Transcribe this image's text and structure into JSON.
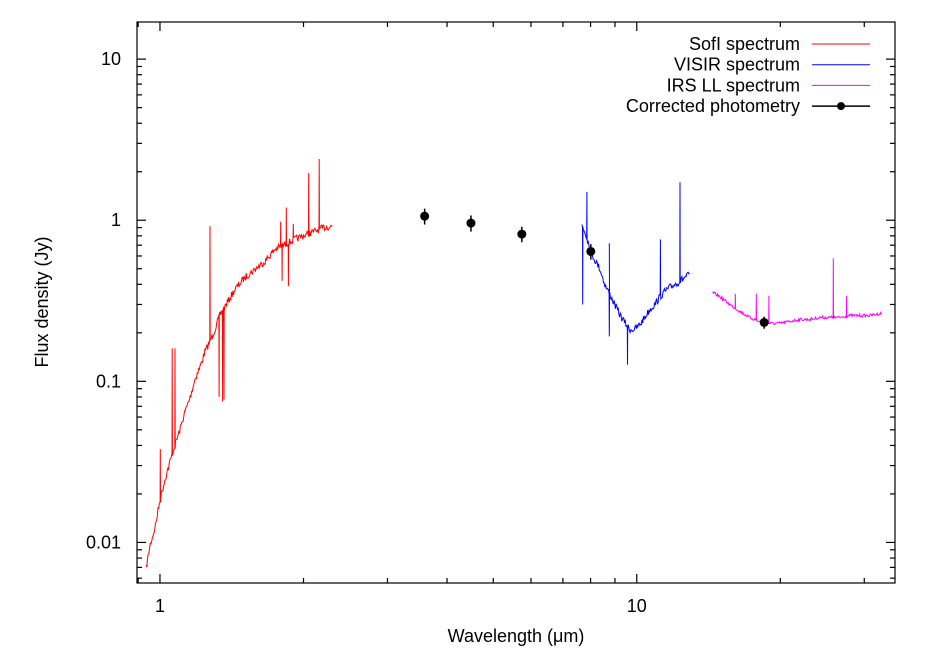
{
  "chart_data": {
    "type": "line",
    "xlabel": "Wavelength (μm)",
    "ylabel": "Flux density (Jy)",
    "x_scale": "log",
    "y_scale": "log",
    "xlim": [
      0.895,
      34.8
    ],
    "ylim": [
      0.0056,
      17
    ],
    "x_tick_labels": [
      {
        "value": 1,
        "label": "1"
      },
      {
        "value": 10,
        "label": "10"
      }
    ],
    "y_tick_labels": [
      {
        "value": 0.01,
        "label": "0.01"
      },
      {
        "value": 0.1,
        "label": "0.1"
      },
      {
        "value": 1,
        "label": "1"
      },
      {
        "value": 10,
        "label": "10"
      }
    ],
    "grid": false,
    "legend_position": "top-right",
    "series": [
      {
        "name": "SofI spectrum",
        "color": "#ff0000",
        "style": "line",
        "continuum": [
          [
            0.935,
            0.0069
          ],
          [
            0.953,
            0.0096
          ],
          [
            0.976,
            0.0123
          ],
          [
            1.0,
            0.0184
          ],
          [
            1.024,
            0.0245
          ],
          [
            1.049,
            0.0316
          ],
          [
            1.075,
            0.0403
          ],
          [
            1.101,
            0.05
          ],
          [
            1.128,
            0.0647
          ],
          [
            1.156,
            0.0792
          ],
          [
            1.184,
            0.103
          ],
          [
            1.213,
            0.123
          ],
          [
            1.243,
            0.153
          ],
          [
            1.273,
            0.177
          ],
          [
            1.304,
            0.21
          ],
          [
            1.336,
            0.26
          ],
          [
            1.389,
            0.313
          ],
          [
            1.436,
            0.372
          ],
          [
            1.507,
            0.442
          ],
          [
            1.582,
            0.496
          ],
          [
            1.66,
            0.556
          ],
          [
            1.742,
            0.66
          ],
          [
            1.829,
            0.709
          ],
          [
            1.919,
            0.762
          ],
          [
            2.014,
            0.807
          ],
          [
            2.113,
            0.855
          ],
          [
            2.218,
            0.904
          ],
          [
            2.305,
            0.918
          ]
        ],
        "features": [
          [
            1.0,
            0.038
          ],
          [
            1.06,
            0.16
          ],
          [
            1.075,
            0.16
          ],
          [
            1.273,
            0.92
          ],
          [
            1.33,
            0.08
          ],
          [
            1.35,
            0.075
          ],
          [
            1.36,
            0.077
          ],
          [
            1.79,
            0.98
          ],
          [
            1.8,
            0.42
          ],
          [
            1.84,
            1.2
          ],
          [
            1.86,
            0.39
          ],
          [
            1.9,
            0.95
          ],
          [
            2.05,
            1.96
          ],
          [
            2.155,
            2.4
          ]
        ]
      },
      {
        "name": "VISIR spectrum",
        "color": "#0000ff",
        "style": "line",
        "continuum": [
          [
            7.67,
            0.94
          ],
          [
            7.82,
            0.82
          ],
          [
            8.05,
            0.614
          ],
          [
            8.37,
            0.5
          ],
          [
            8.57,
            0.4
          ],
          [
            8.78,
            0.347
          ],
          [
            8.99,
            0.3
          ],
          [
            9.21,
            0.26
          ],
          [
            9.44,
            0.232
          ],
          [
            9.66,
            0.21
          ],
          [
            9.9,
            0.21
          ],
          [
            10.15,
            0.225
          ],
          [
            10.39,
            0.249
          ],
          [
            10.65,
            0.279
          ],
          [
            10.91,
            0.3
          ],
          [
            11.17,
            0.332
          ],
          [
            11.45,
            0.361
          ],
          [
            11.73,
            0.383
          ],
          [
            12.02,
            0.4
          ],
          [
            12.31,
            0.417
          ],
          [
            12.61,
            0.442
          ],
          [
            12.91,
            0.461
          ]
        ],
        "features": [
          [
            7.7,
            0.3
          ],
          [
            7.85,
            1.5
          ],
          [
            8.74,
            0.19
          ],
          [
            8.76,
            0.72
          ],
          [
            9.55,
            0.127
          ],
          [
            11.2,
            0.76
          ],
          [
            12.3,
            1.72
          ]
        ]
      },
      {
        "name": "IRS LL spectrum",
        "color": "#ff00ff",
        "style": "line",
        "continuum": [
          [
            14.43,
            0.356
          ],
          [
            14.93,
            0.336
          ],
          [
            15.67,
            0.3
          ],
          [
            16.44,
            0.272
          ],
          [
            17.25,
            0.249
          ],
          [
            18.1,
            0.235
          ],
          [
            19.0,
            0.229
          ],
          [
            19.95,
            0.229
          ],
          [
            20.9,
            0.235
          ],
          [
            21.97,
            0.242
          ],
          [
            23.05,
            0.242
          ],
          [
            24.2,
            0.249
          ],
          [
            25.4,
            0.249
          ],
          [
            26.6,
            0.249
          ],
          [
            27.97,
            0.256
          ],
          [
            29.4,
            0.256
          ],
          [
            30.8,
            0.256
          ],
          [
            32.6,
            0.264
          ]
        ],
        "features": [
          [
            16.1,
            0.35
          ],
          [
            17.8,
            0.35
          ],
          [
            18.9,
            0.34
          ],
          [
            25.8,
            0.58
          ],
          [
            27.5,
            0.34
          ]
        ]
      },
      {
        "name": "Corrected photometry",
        "color": "#000000",
        "style": "points-errorbars",
        "points": [
          {
            "x": 3.59,
            "y": 1.06,
            "yerr": 0.12
          },
          {
            "x": 4.49,
            "y": 0.96,
            "yerr": 0.11
          },
          {
            "x": 5.74,
            "y": 0.82,
            "yerr": 0.09
          },
          {
            "x": 8.01,
            "y": 0.64,
            "yerr": 0.07
          },
          {
            "x": 18.5,
            "y": 0.232,
            "yerr": 0.02
          }
        ]
      }
    ]
  }
}
